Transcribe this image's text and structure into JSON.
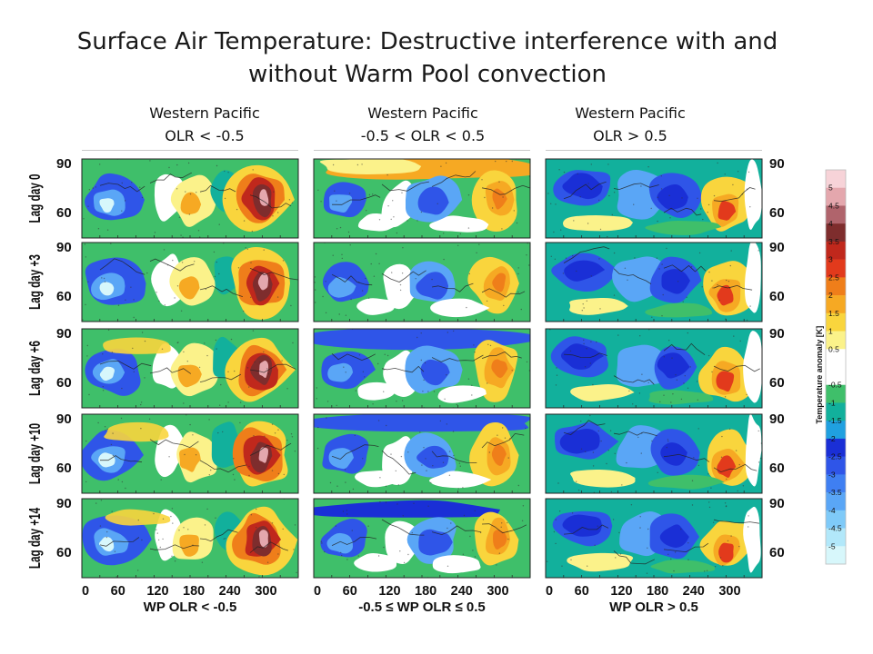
{
  "title": "Surface Air Temperature: Destructive interference with and without Warm Pool convection",
  "columns": [
    {
      "line1": "Western Pacific",
      "line2": "OLR < -0.5",
      "xlabel": "WP OLR < -0.5"
    },
    {
      "line1": "Western Pacific",
      "line2": "-0.5 < OLR < 0.5",
      "xlabel": "-0.5 ≤ WP OLR ≤ 0.5"
    },
    {
      "line1": "Western Pacific",
      "line2": "OLR > 0.5",
      "xlabel": "WP OLR > 0.5"
    }
  ],
  "rows": [
    "Lag day 0",
    "Lag day +3",
    "Lag day +6",
    "Lag day +10",
    "Lag day +14"
  ],
  "lat_ticks": [
    "90",
    "60"
  ],
  "lon_ticks": [
    "0",
    "60",
    "120",
    "180",
    "240",
    "300"
  ],
  "colorbar": {
    "title": "Temperature anomaly [K]",
    "labels": [
      "5",
      "4.5",
      "4",
      "3.5",
      "3",
      "2.5",
      "2",
      "1.5",
      "1",
      "0.5",
      "",
      "-0.5",
      "-1",
      "-1.5",
      "-2",
      "-2.5",
      "-3",
      "-3.5",
      "-4",
      "-4.5",
      "-5"
    ],
    "colors": [
      "#f7d3d8",
      "#e4a7ad",
      "#b0646c",
      "#7e2d2d",
      "#c0281c",
      "#e23a1c",
      "#ef7e1a",
      "#f6a923",
      "#f9d53d",
      "#fbf28a",
      "#ffffff",
      "#ffffff",
      "#3fbf6a",
      "#12b09c",
      "#20a0e0",
      "#1a2fd6",
      "#2f55e8",
      "#3f7ff2",
      "#5aa6f6",
      "#7fcaf8",
      "#b2e8fa",
      "#d7f7fb"
    ]
  }
}
